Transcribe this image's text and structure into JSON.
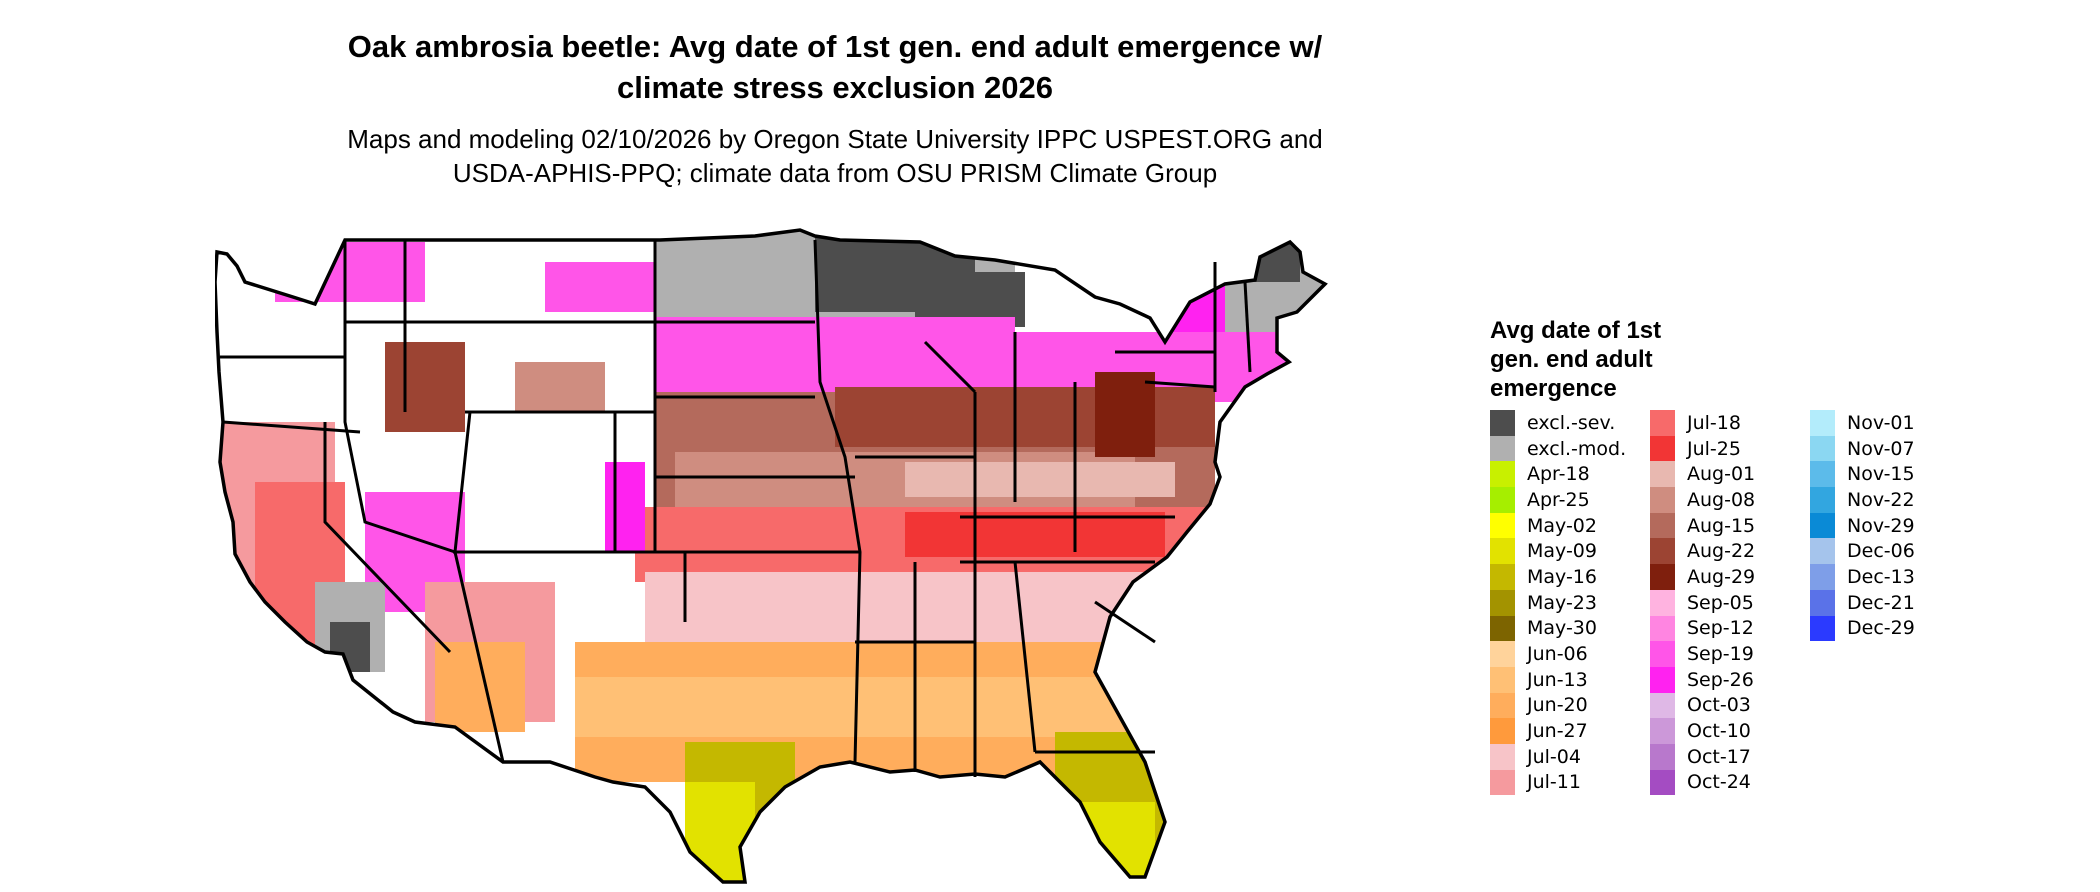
{
  "title_line1": "Oak ambrosia beetle: Avg date of 1st gen. end adult emergence w/",
  "title_line2": "climate stress exclusion 2026",
  "subtitle_line1": "Maps and modeling 02/10/2026 by Oregon State University IPPC USPEST.ORG and",
  "subtitle_line2": "USDA-APHIS-PPQ; climate data from OSU PRISM Climate Group",
  "legend": {
    "title_line1": "Avg date of 1st",
    "title_line2": "gen. end adult",
    "title_line3": "emergence",
    "columns": [
      [
        {
          "label": "excl.-sev.",
          "color": "#4d4d4d"
        },
        {
          "label": "excl.-mod.",
          "color": "#b0b0b0"
        },
        {
          "label": "Apr-18",
          "color": "#c8f000"
        },
        {
          "label": "Apr-25",
          "color": "#a6ee00"
        },
        {
          "label": "May-02",
          "color": "#ffff00"
        },
        {
          "label": "May-09",
          "color": "#e2e200"
        },
        {
          "label": "May-16",
          "color": "#c4b800"
        },
        {
          "label": "May-23",
          "color": "#a39300"
        },
        {
          "label": "May-30",
          "color": "#7d6400"
        },
        {
          "label": "Jun-06",
          "color": "#ffd39b"
        },
        {
          "label": "Jun-13",
          "color": "#ffc075"
        },
        {
          "label": "Jun-20",
          "color": "#ffad5c"
        },
        {
          "label": "Jun-27",
          "color": "#ff9a3c"
        },
        {
          "label": "Jul-04",
          "color": "#f7c4c8"
        },
        {
          "label": "Jul-11",
          "color": "#f59a9e"
        }
      ],
      [
        {
          "label": "Jul-18",
          "color": "#f76a6a"
        },
        {
          "label": "Jul-25",
          "color": "#f23535"
        },
        {
          "label": "Aug-01",
          "color": "#e8b8b0"
        },
        {
          "label": "Aug-08",
          "color": "#cf8d80"
        },
        {
          "label": "Aug-15",
          "color": "#b46a5c"
        },
        {
          "label": "Aug-22",
          "color": "#9c4433"
        },
        {
          "label": "Aug-29",
          "color": "#7f1f0d"
        },
        {
          "label": "Sep-05",
          "color": "#ffb3e0"
        },
        {
          "label": "Sep-12",
          "color": "#ff85e1"
        },
        {
          "label": "Sep-19",
          "color": "#ff55e8"
        },
        {
          "label": "Sep-26",
          "color": "#ff22f0"
        },
        {
          "label": "Oct-03",
          "color": "#dfb8e6"
        },
        {
          "label": "Oct-10",
          "color": "#cc98d9"
        },
        {
          "label": "Oct-17",
          "color": "#b878cc"
        },
        {
          "label": "Oct-24",
          "color": "#a44cc2"
        }
      ],
      [
        {
          "label": "Nov-01",
          "color": "#b3ecfb"
        },
        {
          "label": "Nov-07",
          "color": "#8bd7f2"
        },
        {
          "label": "Nov-15",
          "color": "#5cbbea"
        },
        {
          "label": "Nov-22",
          "color": "#32a6e0"
        },
        {
          "label": "Nov-29",
          "color": "#0a8ad6"
        },
        {
          "label": "Dec-06",
          "color": "#a5c4ec"
        },
        {
          "label": "Dec-13",
          "color": "#7e9ee8"
        },
        {
          "label": "Dec-21",
          "color": "#5a72e8"
        },
        {
          "label": "Dec-29",
          "color": "#2b3aff"
        }
      ]
    ]
  },
  "map_palette": {
    "white": "#ffffff",
    "outline": "#000000"
  }
}
